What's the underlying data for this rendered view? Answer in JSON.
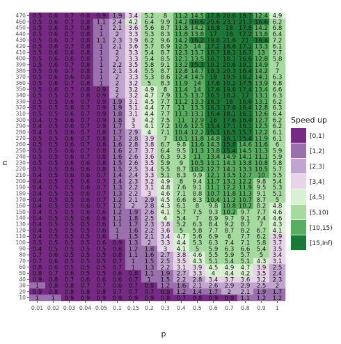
{
  "chart_data": {
    "type": "heatmap",
    "title": "",
    "xlabel": "p",
    "ylabel": "n",
    "x": [
      "0.01",
      "0.02",
      "0.03",
      "0.04",
      "0.05",
      "0.1",
      "0.15",
      "0.2",
      "0.3",
      "0.4",
      "0.5",
      "0.6",
      "0.7",
      "0.8",
      "0.9",
      "1"
    ],
    "y": [
      470,
      460,
      450,
      440,
      430,
      420,
      410,
      400,
      390,
      380,
      370,
      360,
      350,
      340,
      330,
      320,
      310,
      300,
      290,
      280,
      270,
      260,
      250,
      240,
      230,
      220,
      210,
      200,
      190,
      180,
      170,
      160,
      150,
      140,
      130,
      120,
      110,
      100,
      90,
      80,
      70,
      60,
      50,
      40,
      30,
      20,
      10
    ],
    "values": [
      [
        0.5,
        0.6,
        0.7,
        0.8,
        0.9,
        1.9,
        3.4,
        5.2,
        8,
        11.2,
        14.5,
        17.8,
        20.6,
        19.7,
        12.4,
        4.9
      ],
      [
        0.5,
        0.6,
        0.7,
        0.8,
        1.1,
        2.4,
        4.2,
        6.4,
        9.9,
        14.2,
        16.6,
        20.6,
        23.1,
        21.3,
        16.6,
        6.2
      ],
      [
        0.5,
        0.6,
        0.7,
        0.8,
        1,
        2.1,
        3.6,
        5.6,
        8.7,
        11.8,
        14.2,
        16.8,
        18,
        17.8,
        14.2,
        6.8
      ],
      [
        0.5,
        0.6,
        0.7,
        0.8,
        1,
        2,
        3.3,
        5.3,
        8.3,
        11.8,
        13.8,
        17,
        18,
        17.2,
        13.8,
        6.4
      ],
      [
        0.5,
        0.6,
        0.7,
        0.8,
        1.1,
        2.3,
        3.9,
        6.2,
        9.6,
        14.2,
        16.2,
        19.8,
        21.6,
        21,
        16.4,
        7.2
      ],
      [
        0.5,
        0.6,
        0.7,
        0.8,
        1,
        2.1,
        3.6,
        5.7,
        8.9,
        12.5,
        14,
        17.2,
        18.6,
        17.1,
        13.3,
        6.1
      ],
      [
        0.5,
        0.6,
        0.6,
        0.8,
        1,
        2,
        3.3,
        5.4,
        8.7,
        12.3,
        13.7,
        16.7,
        18.1,
        16.7,
        13,
        5.7
      ],
      [
        0.5,
        0.6,
        0.6,
        0.8,
        1,
        2,
        3.3,
        5.4,
        8.5,
        12.1,
        13.5,
        16.7,
        18.1,
        16.6,
        12.8,
        5.8
      ],
      [
        0.5,
        0.6,
        0.7,
        0.8,
        1,
        2.2,
        3.5,
        5.8,
        9.1,
        13.2,
        15.3,
        19.2,
        20.6,
        19.1,
        14.9,
        7
      ],
      [
        0.5,
        0.6,
        0.7,
        0.8,
        1,
        2.1,
        3.4,
        5.5,
        8.7,
        12.8,
        14.7,
        18.3,
        20.3,
        18.4,
        14.2,
        7
      ],
      [
        0.5,
        0.6,
        0.6,
        0.8,
        1,
        2,
        3.3,
        5.3,
        8.6,
        12.4,
        14.5,
        18,
        19.5,
        18.2,
        14.1,
        6.3
      ],
      [
        0.5,
        0.6,
        0.7,
        0.8,
        1,
        2,
        3.2,
        5,
        8.3,
        11.9,
        14,
        17.6,
        19.2,
        17.5,
        13.9,
        6.8
      ],
      [
        0.5,
        0.6,
        0.7,
        0.8,
        0.9,
        2,
        3.2,
        4.9,
        8,
        11.4,
        14,
        17.6,
        19.6,
        17.4,
        13.4,
        6.6
      ],
      [
        0.5,
        0.5,
        0.7,
        0.8,
        0.9,
        2,
        3.2,
        4.7,
        7.9,
        11.5,
        13.7,
        16.5,
        18.2,
        17,
        13.1,
        6.3
      ],
      [
        0.5,
        0.5,
        0.6,
        0.7,
        0.9,
        1.9,
        3.1,
        4.5,
        7.7,
        11.2,
        13.3,
        16.3,
        18,
        16.6,
        13.1,
        6.2
      ],
      [
        0.5,
        0.5,
        0.6,
        0.7,
        0.9,
        1.9,
        3.1,
        4.4,
        7.7,
        11,
        13.3,
        16.3,
        17.8,
        16.4,
        12.8,
        6.3
      ],
      [
        0.5,
        0.5,
        0.6,
        0.7,
        0.9,
        1.8,
        3.1,
        4.4,
        7.7,
        11.3,
        13.1,
        16.4,
        18.1,
        16.1,
        12.6,
        6.4
      ],
      [
        0.4,
        0.5,
        0.6,
        0.7,
        0.9,
        1.8,
        3,
        4.2,
        7.5,
        11,
        12.9,
        16,
        17.6,
        16.4,
        12.7,
        6.2
      ],
      [
        0.4,
        0.5,
        0.6,
        0.7,
        0.9,
        1.7,
        3,
        4.1,
        7.2,
        10.6,
        12.5,
        15.4,
        17.1,
        16.1,
        12.5,
        6.2
      ],
      [
        0.4,
        0.5,
        0.6,
        0.7,
        0.8,
        1.7,
        2.9,
        4,
        7.1,
        10.4,
        12.2,
        15.1,
        16.5,
        15.7,
        12.2,
        6.1
      ],
      [
        0.5,
        0.5,
        0.6,
        0.7,
        0.8,
        1.7,
        2.8,
        3.9,
        7,
        10.1,
        11.8,
        14.8,
        16.1,
        15.4,
        11.9,
        6.1
      ],
      [
        0.5,
        0.5,
        0.6,
        0.7,
        0.8,
        1.6,
        2.8,
        3.8,
        6.7,
        9.8,
        11.6,
        14.3,
        15.8,
        14.6,
        11.6,
        6
      ],
      [
        0.5,
        0.5,
        0.6,
        0.7,
        0.8,
        1.6,
        2.7,
        3.7,
        6.4,
        9.5,
        11.3,
        13.8,
        15.4,
        14.5,
        11.3,
        5.9
      ],
      [
        0.5,
        0.5,
        0.6,
        0.7,
        0.8,
        1.6,
        2.6,
        3.6,
        6.3,
        9.3,
        11,
        13.4,
        14.9,
        14.1,
        11.1,
        5.9
      ],
      [
        0.5,
        0.5,
        0.6,
        0.6,
        0.8,
        1.5,
        2.6,
        3.5,
        5.9,
        9,
        10.5,
        13.1,
        14.3,
        13.8,
        10.8,
        5.8
      ],
      [
        0.5,
        0.5,
        0.6,
        0.6,
        0.8,
        1.5,
        2.5,
        3.4,
        5.5,
        8.7,
        10.2,
        12.7,
        14.1,
        13.3,
        10.5,
        5.7
      ],
      [
        0.4,
        0.5,
        0.6,
        0.6,
        0.7,
        1.4,
        2.4,
        3.3,
        5.1,
        8.3,
        9.9,
        12.1,
        13.5,
        12.7,
        10,
        5.5
      ],
      [
        0.4,
        0.5,
        0.5,
        0.6,
        0.7,
        1.4,
        2.3,
        3.2,
        4.9,
        8,
        9.4,
        11.7,
        13.1,
        12.2,
        9.8,
        5.4
      ],
      [
        0.4,
        0.5,
        0.5,
        0.6,
        0.7,
        1.3,
        2.2,
        3.1,
        4.8,
        7.6,
        9.1,
        11.1,
        12.2,
        11.9,
        9.5,
        5.3
      ],
      [
        0.4,
        0.5,
        0.5,
        0.6,
        0.7,
        1.3,
        2.2,
        3,
        4.6,
        7.1,
        8.8,
        10.7,
        11.8,
        11.3,
        9.1,
        5.1
      ],
      [
        0.4,
        0.5,
        0.5,
        0.6,
        0.7,
        1.2,
        2.1,
        2.9,
        4.5,
        6.6,
        8.3,
        10.4,
        11.2,
        10.7,
        8.7,
        5
      ],
      [
        0.4,
        0.5,
        0.5,
        0.6,
        0.7,
        1.2,
        2,
        2.8,
        4.3,
        6.1,
        8,
        9.8,
        10.8,
        10.2,
        8.2,
        4.8
      ],
      [
        0.4,
        0.5,
        0.5,
        0.6,
        0.6,
        1.2,
        1.9,
        2.6,
        4.1,
        5.7,
        7.5,
        9.3,
        10.2,
        9.7,
        7.7,
        4.6
      ],
      [
        0.4,
        0.5,
        0.5,
        0.6,
        0.6,
        1.1,
        1.8,
        2.5,
        4,
        5.4,
        7,
        8.9,
        9.7,
        9.1,
        7.4,
        4.6
      ],
      [
        0.4,
        0.5,
        0.5,
        0.5,
        0.6,
        1.1,
        1.7,
        2.3,
        3.8,
        5.2,
        6.3,
        8.4,
        9.2,
        8.7,
        7,
        4.3
      ],
      [
        0.4,
        0.5,
        0.5,
        0.5,
        0.6,
        1,
        1.6,
        2.2,
        3.6,
        5,
        5.8,
        7.7,
        8.7,
        8.2,
        6.7,
        4.1
      ],
      [
        0.4,
        0.5,
        0.5,
        0.5,
        0.6,
        1,
        1.5,
        2.1,
        3.4,
        4.7,
        5.6,
        6.9,
        8,
        7.7,
        6.2,
        3.9
      ],
      [
        0.5,
        0.5,
        0.5,
        0.5,
        0.6,
        0.9,
        1.3,
        2,
        3.3,
        4.4,
        5.3,
        6.3,
        7.4,
        7.1,
        5.8,
        3.7
      ],
      [
        0.4,
        0.5,
        0.5,
        0.5,
        0.5,
        0.8,
        1.2,
        1.8,
        3,
        4.1,
        5,
        5.9,
        6.3,
        6.6,
        5.4,
        3.5
      ],
      [
        0.7,
        0.6,
        0.5,
        0.5,
        0.5,
        0.8,
        1.1,
        1.6,
        2.7,
        3.8,
        4.6,
        5.5,
        5.9,
        5.7,
        5,
        3.4
      ],
      [
        0.7,
        0.6,
        0.5,
        0.5,
        0.5,
        0.7,
        1,
        1.5,
        2.5,
        3.5,
        4.3,
        5.1,
        5.4,
        5.1,
        4.3,
        3.1
      ],
      [
        0.8,
        0.6,
        0.5,
        0.5,
        0.5,
        0.7,
        1,
        1.3,
        2.2,
        3.1,
        3.9,
        4.5,
        4.9,
        4.7,
        3.9,
        2.5
      ],
      [
        0.8,
        0.7,
        0.6,
        0.5,
        0.5,
        0.6,
        0.8,
        1.1,
        1.9,
        2.7,
        3.3,
        4,
        4.4,
        4.2,
        3.5,
        2.4
      ],
      [
        0.9,
        0.8,
        0.7,
        0.6,
        0.6,
        0.6,
        0.7,
        1,
        1.5,
        2.2,
        2.8,
        3.4,
        3.7,
        3.6,
        3.2,
        2.3
      ],
      [
        1,
        0.8,
        0.8,
        0.7,
        0.7,
        0.6,
        0.7,
        0.8,
        1.2,
        1.6,
        2.1,
        2.6,
        2.9,
        2.9,
        2.5,
        2
      ],
      [
        0.9,
        0.8,
        0.8,
        0.8,
        0.8,
        0.7,
        0.7,
        0.7,
        0.9,
        1.2,
        1.4,
        1.7,
        2,
        2.1,
        1.9,
        1.7
      ],
      [
        1,
        1,
        0.9,
        0.9,
        0.9,
        0.9,
        0.9,
        0.9,
        0.8,
        0.7,
        0.8,
        0.9,
        0.9,
        1.1,
        1.2,
        1.2
      ]
    ],
    "legend": {
      "title": "Speed up",
      "position": "right",
      "bins": [
        {
          "label": "[0,1)",
          "color": "#762a83"
        },
        {
          "label": "[1,2)",
          "color": "#9970ab"
        },
        {
          "label": "[2,3)",
          "color": "#c2a5cf"
        },
        {
          "label": "[3,4)",
          "color": "#e7d4e8"
        },
        {
          "label": "[4,5)",
          "color": "#d9f0d3"
        },
        {
          "label": "[5,10)",
          "color": "#a6dba0"
        },
        {
          "label": "[10,15)",
          "color": "#5aae61"
        },
        {
          "label": "[15,Inf)",
          "color": "#1b7837"
        }
      ],
      "thresholds": [
        1,
        2,
        3,
        4,
        5,
        10,
        15
      ]
    },
    "grid": false
  }
}
